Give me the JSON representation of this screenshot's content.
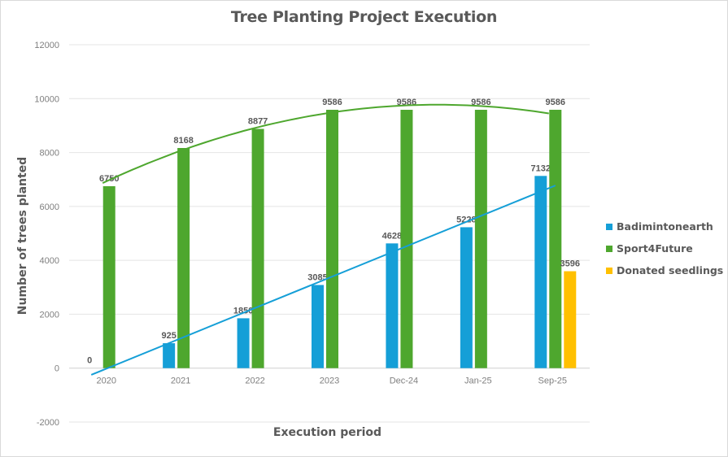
{
  "chart_data": {
    "type": "bar",
    "title": "Tree Planting Project Execution",
    "xlabel": "Execution period",
    "ylabel": "Number of trees planted",
    "ylim": [
      -2000,
      12000
    ],
    "yticks": [
      12000,
      10000,
      8000,
      6000,
      4000,
      2000,
      0,
      -2000
    ],
    "grid": true,
    "legend_position": "right",
    "categories": [
      "2020",
      "2021",
      "2022",
      "2023",
      "Dec-24",
      "Jan-25",
      "Sep-25"
    ],
    "series": [
      {
        "name": "Badimintonearth",
        "color": "#159fd7",
        "values": [
          0,
          925,
          1850,
          3085,
          4628,
          5228,
          7132
        ]
      },
      {
        "name": "Sport4Future",
        "color": "#4ea72e",
        "values": [
          6750,
          8168,
          8877,
          9586,
          9586,
          9586,
          9586
        ]
      },
      {
        "name": "Donated seedlings",
        "color": "#ffc000",
        "values": [
          null,
          null,
          null,
          null,
          null,
          null,
          3596
        ]
      }
    ],
    "trendlines": [
      {
        "series": "Badimintonearth",
        "type": "linear",
        "color": "#159fd7"
      },
      {
        "series": "Sport4Future",
        "type": "polynomial",
        "color": "#4ea72e"
      }
    ]
  }
}
